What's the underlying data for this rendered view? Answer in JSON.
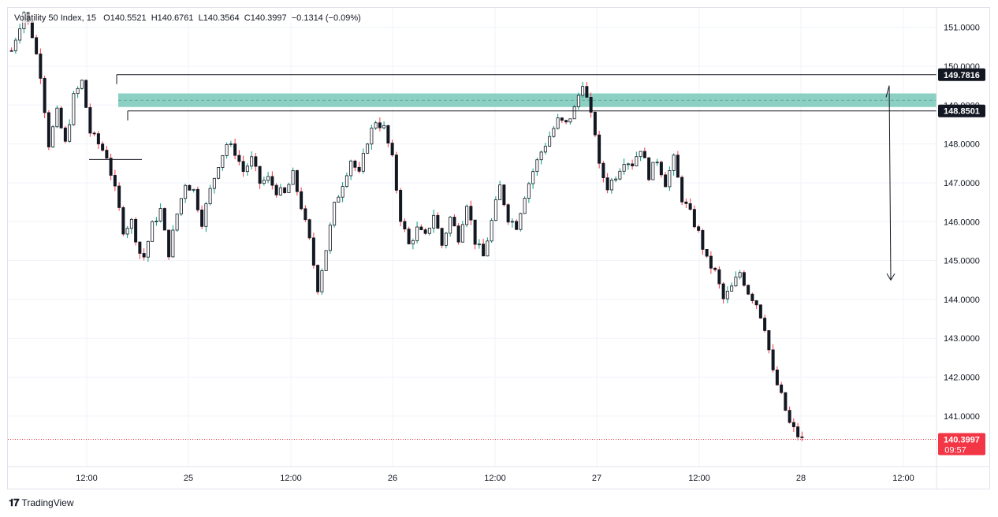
{
  "legend": {
    "symbol": "Volatility 50 Index, 15",
    "open": "O140.5521",
    "high": "H140.6761",
    "low": "L140.3564",
    "close": "C140.3997",
    "change": "−0.1314 (−0.09%)"
  },
  "footer": {
    "brand": "TradingView"
  },
  "colors": {
    "up": "#089981",
    "down": "#f23645",
    "body": "#131722",
    "zone": "#80cbbd",
    "current": "#f23645"
  },
  "price_labels": {
    "upper_level": "149.7816",
    "lower_level": "148.8501",
    "current_price": "140.3997",
    "countdown": "09:57"
  },
  "chart_data": {
    "type": "candlestick",
    "symbol": "Volatility 50 Index",
    "timeframe": "15",
    "ylim": [
      139.7,
      151.5
    ],
    "y_ticks": [
      "151.0000",
      "150.0000",
      "149.0000",
      "148.0000",
      "147.0000",
      "146.0000",
      "145.0000",
      "144.0000",
      "143.0000",
      "142.0000",
      "141.0000"
    ],
    "x_ticks": [
      "12:00",
      "25",
      "12:00",
      "26",
      "12:00",
      "27",
      "12:00",
      "28",
      "12:00"
    ],
    "path": [
      [
        0,
        150.4
      ],
      [
        3,
        151.4
      ],
      [
        5,
        150.8
      ],
      [
        7,
        149.8
      ],
      [
        9,
        148.0
      ],
      [
        11,
        148.8
      ],
      [
        13,
        148.0
      ],
      [
        15,
        149.2
      ],
      [
        17,
        149.6
      ],
      [
        19,
        148.3
      ],
      [
        21,
        148.0
      ],
      [
        23,
        147.7
      ],
      [
        25,
        146.8
      ],
      [
        27,
        145.8
      ],
      [
        29,
        146.0
      ],
      [
        31,
        145.2
      ],
      [
        32,
        145.1
      ],
      [
        34,
        145.9
      ],
      [
        36,
        146.3
      ],
      [
        37,
        145.7
      ],
      [
        38,
        145.2
      ],
      [
        40,
        146.2
      ],
      [
        42,
        147.0
      ],
      [
        44,
        146.8
      ],
      [
        46,
        146.0
      ],
      [
        48,
        146.8
      ],
      [
        50,
        147.5
      ],
      [
        52,
        148.0
      ],
      [
        54,
        147.8
      ],
      [
        56,
        147.3
      ],
      [
        58,
        147.6
      ],
      [
        60,
        147.0
      ],
      [
        62,
        147.1
      ],
      [
        64,
        146.8
      ],
      [
        66,
        146.7
      ],
      [
        68,
        147.2
      ],
      [
        70,
        146.4
      ],
      [
        72,
        145.5
      ],
      [
        74,
        144.3
      ],
      [
        76,
        145.3
      ],
      [
        78,
        146.4
      ],
      [
        80,
        147.0
      ],
      [
        82,
        147.6
      ],
      [
        84,
        147.2
      ],
      [
        86,
        148.1
      ],
      [
        88,
        148.6
      ],
      [
        90,
        148.4
      ],
      [
        92,
        147.6
      ],
      [
        94,
        146.1
      ],
      [
        96,
        145.4
      ],
      [
        98,
        145.8
      ],
      [
        100,
        145.6
      ],
      [
        102,
        146.2
      ],
      [
        104,
        145.4
      ],
      [
        106,
        146.1
      ],
      [
        108,
        145.6
      ],
      [
        110,
        146.5
      ],
      [
        112,
        145.5
      ],
      [
        114,
        145.1
      ],
      [
        116,
        146.0
      ],
      [
        118,
        146.9
      ],
      [
        120,
        146.1
      ],
      [
        122,
        145.9
      ],
      [
        124,
        146.7
      ],
      [
        126,
        147.3
      ],
      [
        128,
        147.8
      ],
      [
        130,
        148.2
      ],
      [
        132,
        148.6
      ],
      [
        134,
        148.5
      ],
      [
        136,
        148.9
      ],
      [
        138,
        149.6
      ],
      [
        140,
        148.7
      ],
      [
        141,
        148.3
      ],
      [
        142,
        147.4
      ],
      [
        144,
        146.9
      ],
      [
        146,
        147.2
      ],
      [
        148,
        147.6
      ],
      [
        150,
        147.5
      ],
      [
        152,
        147.9
      ],
      [
        154,
        147.2
      ],
      [
        156,
        147.6
      ],
      [
        158,
        147.0
      ],
      [
        160,
        147.6
      ],
      [
        162,
        146.6
      ],
      [
        164,
        146.2
      ],
      [
        166,
        145.7
      ],
      [
        168,
        145.0
      ],
      [
        170,
        144.7
      ],
      [
        172,
        144.0
      ],
      [
        174,
        144.3
      ],
      [
        176,
        144.7
      ],
      [
        178,
        144.2
      ],
      [
        180,
        143.9
      ],
      [
        182,
        143.3
      ],
      [
        184,
        142.1
      ],
      [
        186,
        141.5
      ],
      [
        188,
        140.8
      ],
      [
        190,
        140.5
      ],
      [
        191,
        140.4
      ]
    ],
    "horizontal_levels": [
      149.7816,
      148.8501
    ],
    "zone": {
      "low": 148.95,
      "high": 149.3
    },
    "arrow": {
      "from": 149.5,
      "to": 144.5
    },
    "current_price": 140.3997
  }
}
